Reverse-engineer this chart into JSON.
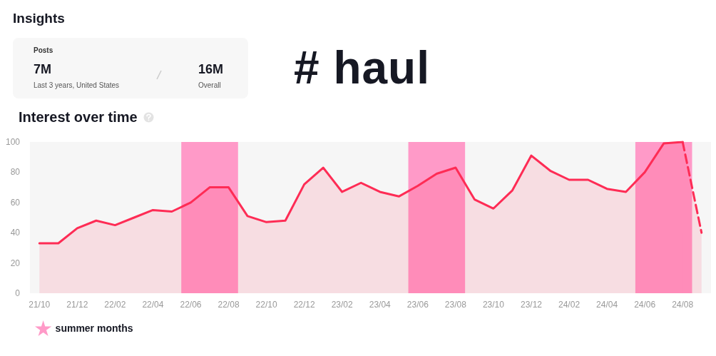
{
  "chart_data": {
    "type": "area",
    "title": "# haul",
    "subtitle": "Interest over time",
    "annotations": [
      "Insights",
      "Posts",
      "7M",
      "Last 3 years, United States",
      "16M",
      "Overall"
    ],
    "categories": [
      "21/10",
      null,
      "21/12",
      null,
      "22/02",
      null,
      "22/04",
      null,
      "22/06",
      null,
      "22/08",
      null,
      "22/10",
      null,
      "22/12",
      null,
      "23/02",
      null,
      "23/04",
      null,
      "23/06",
      null,
      "23/08",
      null,
      "23/10",
      null,
      "23/12",
      null,
      "24/02",
      null,
      "24/04",
      null,
      "24/06",
      null,
      "24/08",
      null
    ],
    "series": [
      {
        "color": "#fe2c55",
        "line_style": "solid",
        "values": [
          33,
          33,
          43,
          48,
          45,
          50,
          55,
          54,
          60,
          70,
          70,
          51,
          47,
          48,
          72,
          83,
          67,
          73,
          67,
          64,
          71,
          79,
          83,
          62,
          56,
          68,
          91,
          81,
          75,
          75,
          69,
          67,
          80,
          99,
          100,
          null
        ]
      },
      {
        "color": "#fe2c55",
        "line_style": "dashed",
        "values": [
          null,
          null,
          null,
          null,
          null,
          null,
          null,
          null,
          null,
          null,
          null,
          null,
          null,
          null,
          null,
          null,
          null,
          null,
          null,
          null,
          null,
          null,
          null,
          null,
          null,
          null,
          null,
          null,
          null,
          null,
          null,
          null,
          null,
          null,
          100,
          40
        ]
      }
    ],
    "bands": [
      {
        "axis": "x",
        "from": "22/06",
        "to": "22/08",
        "label": "summer months",
        "color": "#ff9ac8"
      },
      {
        "axis": "x",
        "from": "23/06",
        "to": "23/08",
        "label": null,
        "color": "#ff9ac8"
      },
      {
        "axis": "x",
        "from": "24/06",
        "to": "24/08",
        "label": null,
        "color": "#ff9ac8"
      }
    ],
    "ylim": [
      0,
      100
    ],
    "yticks": [
      0,
      20,
      40,
      60,
      80,
      100
    ],
    "grid": false,
    "legend": "bottom left",
    "marker": "none"
  }
}
